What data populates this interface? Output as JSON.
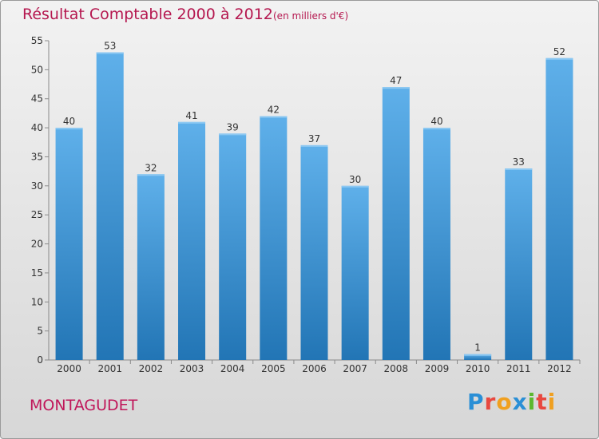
{
  "header": {
    "title": "Résultat Comptable 2000 à 2012",
    "subtitle": "(en milliers d'€)"
  },
  "footer": {
    "commune": "MONTAGUDET",
    "brand": "Proxiti",
    "brand_letters": [
      {
        "char": "P",
        "color": "#2a8fd6"
      },
      {
        "char": "r",
        "color": "#e8483f"
      },
      {
        "char": "o",
        "color": "#f0a020"
      },
      {
        "char": "x",
        "color": "#2a8fd6"
      },
      {
        "char": "i",
        "color": "#5cb82e"
      },
      {
        "char": "t",
        "color": "#e8483f"
      },
      {
        "char": "i",
        "color": "#f0a020"
      }
    ]
  },
  "colors": {
    "title": "#b5174f",
    "bar_top": "#5fb0ea",
    "bar_bottom": "#2275b5"
  },
  "chart_data": {
    "type": "bar",
    "title": "Résultat Comptable 2000 à 2012",
    "subtitle": "(en milliers d'€)",
    "xlabel": "",
    "ylabel": "",
    "categories": [
      "2000",
      "2001",
      "2002",
      "2003",
      "2004",
      "2005",
      "2006",
      "2007",
      "2008",
      "2009",
      "2010",
      "2011",
      "2012"
    ],
    "values": [
      40,
      53,
      32,
      41,
      39,
      42,
      37,
      30,
      47,
      40,
      1,
      33,
      52
    ],
    "ylim": [
      0,
      55
    ],
    "yticks": [
      0,
      5,
      10,
      15,
      20,
      25,
      30,
      35,
      40,
      45,
      50,
      55
    ],
    "grid": false,
    "legend": "none"
  }
}
